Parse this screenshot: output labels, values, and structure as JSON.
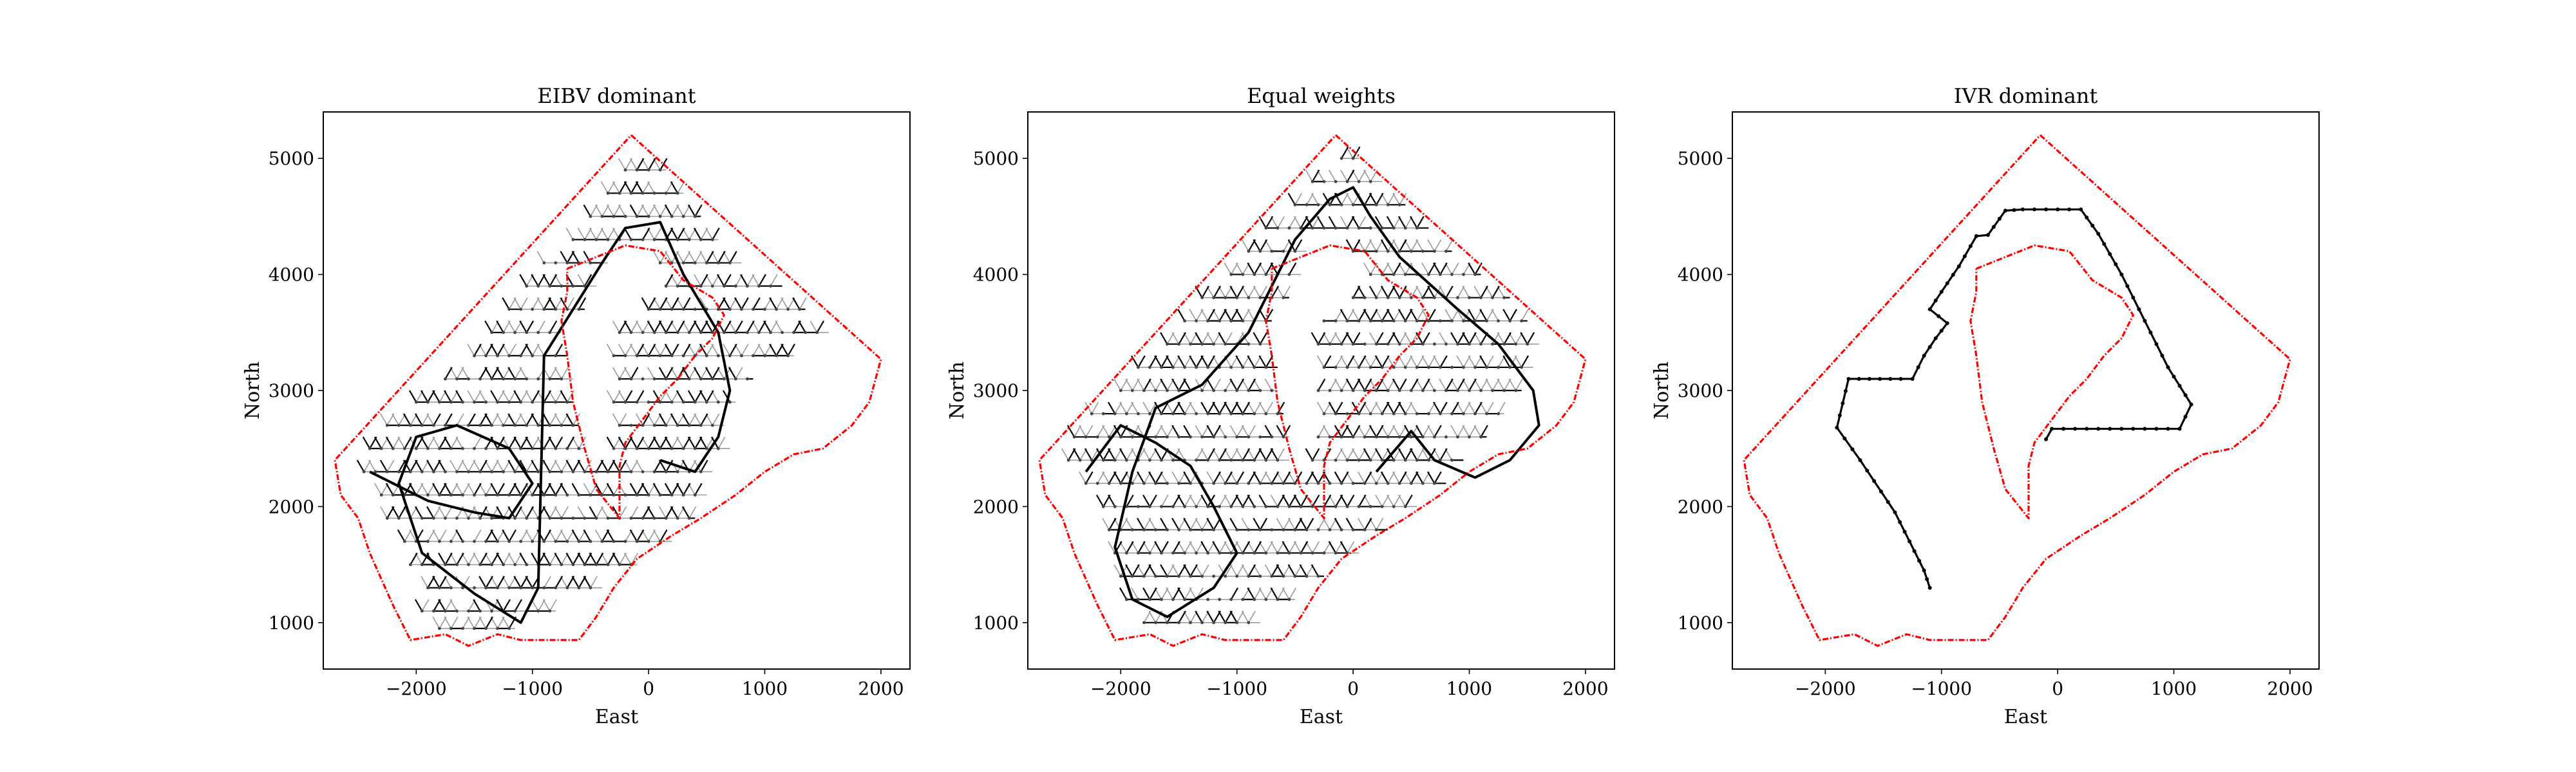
{
  "chart_data": [
    {
      "type": "line",
      "title": "EIBV dominant",
      "xlabel": "East",
      "ylabel": "North",
      "xlim": [
        -2800,
        2250
      ],
      "ylim": [
        600,
        5400
      ],
      "xticks": [
        -2000,
        -1000,
        0,
        1000,
        2000
      ],
      "yticks": [
        1000,
        2000,
        3000,
        4000,
        5000
      ],
      "xtick_labels": [
        "−2000",
        "−1000",
        "0",
        "1000",
        "2000"
      ],
      "ytick_labels": [
        "1000",
        "2000",
        "3000",
        "4000",
        "5000"
      ],
      "grid": false,
      "trajectory_style": "dense lattice",
      "coverage_rows": [
        {
          "y": 4900,
          "x": [
            -250,
            150
          ]
        },
        {
          "y": 4700,
          "x": [
            -400,
            300
          ]
        },
        {
          "y": 4500,
          "x": [
            -550,
            450
          ]
        },
        {
          "y": 4300,
          "x": [
            -700,
            600
          ]
        },
        {
          "y": 4100,
          "x": [
            -900,
            -350,
            50,
            800
          ]
        },
        {
          "y": 3900,
          "x": [
            -1050,
            -450,
            150,
            1150
          ]
        },
        {
          "y": 3700,
          "x": [
            -1200,
            -550,
            0,
            1350
          ]
        },
        {
          "y": 3500,
          "x": [
            -1350,
            -750,
            -250,
            1550
          ]
        },
        {
          "y": 3300,
          "x": [
            -1550,
            -700,
            -350,
            1250
          ]
        },
        {
          "y": 3100,
          "x": [
            -1800,
            -650,
            -300,
            900
          ]
        },
        {
          "y": 2900,
          "x": [
            -2000,
            -650,
            -300,
            750
          ]
        },
        {
          "y": 2700,
          "x": [
            -2250,
            -600,
            -300,
            650
          ]
        },
        {
          "y": 2500,
          "x": [
            -2400,
            -550,
            -300,
            700
          ]
        },
        {
          "y": 2300,
          "x": [
            -2450,
            550
          ]
        },
        {
          "y": 2100,
          "x": [
            -2350,
            500
          ]
        },
        {
          "y": 1900,
          "x": [
            -2250,
            400
          ]
        },
        {
          "y": 1700,
          "x": [
            -2150,
            200
          ]
        },
        {
          "y": 1500,
          "x": [
            -2050,
            -100
          ]
        },
        {
          "y": 1300,
          "x": [
            -1950,
            -400
          ]
        },
        {
          "y": 1100,
          "x": [
            -1950,
            -800
          ]
        },
        {
          "y": 950,
          "x": [
            -1800,
            -1150
          ]
        }
      ],
      "highlight_path": {
        "x": [
          -2400,
          -2200,
          -1900,
          -1500,
          -1200,
          -1000,
          -1200,
          -1650,
          -2000,
          -2150,
          -1950,
          -1500,
          -1100,
          -950,
          -900,
          -400,
          -200,
          100,
          300,
          600,
          700,
          600,
          400,
          100
        ],
        "y": [
          2300,
          2200,
          2050,
          1950,
          1900,
          2200,
          2500,
          2700,
          2600,
          2200,
          1600,
          1250,
          1000,
          1300,
          3300,
          4100,
          4400,
          4450,
          4000,
          3500,
          3000,
          2600,
          2300,
          2400
        ]
      }
    },
    {
      "type": "line",
      "title": "Equal weights",
      "xlabel": "East",
      "ylabel": "North",
      "xlim": [
        -2800,
        2250
      ],
      "ylim": [
        600,
        5400
      ],
      "xticks": [
        -2000,
        -1000,
        0,
        1000,
        2000
      ],
      "yticks": [
        1000,
        2000,
        3000,
        4000,
        5000
      ],
      "xtick_labels": [
        "−2000",
        "−1000",
        "0",
        "1000",
        "2000"
      ],
      "ytick_labels": [
        "1000",
        "2000",
        "3000",
        "4000",
        "5000"
      ],
      "grid": false,
      "trajectory_style": "dense lattice",
      "coverage_rows": [
        {
          "y": 5000,
          "x": [
            -150,
            50
          ]
        },
        {
          "y": 4800,
          "x": [
            -350,
            250
          ]
        },
        {
          "y": 4600,
          "x": [
            -550,
            450
          ]
        },
        {
          "y": 4400,
          "x": [
            -750,
            650
          ]
        },
        {
          "y": 4200,
          "x": [
            -950,
            -400,
            0,
            850
          ]
        },
        {
          "y": 4000,
          "x": [
            -1100,
            -450,
            150,
            1100
          ]
        },
        {
          "y": 3800,
          "x": [
            -1300,
            -550,
            0,
            1350
          ]
        },
        {
          "y": 3600,
          "x": [
            -1450,
            -700,
            -250,
            1500
          ]
        },
        {
          "y": 3400,
          "x": [
            -1650,
            -700,
            -350,
            1600
          ]
        },
        {
          "y": 3200,
          "x": [
            -1850,
            -650,
            -300,
            1550
          ]
        },
        {
          "y": 3000,
          "x": [
            -2050,
            -650,
            -300,
            1450
          ]
        },
        {
          "y": 2800,
          "x": [
            -2250,
            -600,
            -300,
            1300
          ]
        },
        {
          "y": 2600,
          "x": [
            -2400,
            -550,
            -300,
            1150
          ]
        },
        {
          "y": 2400,
          "x": [
            -2450,
            -550,
            -350,
            950
          ]
        },
        {
          "y": 2200,
          "x": [
            -2300,
            800
          ]
        },
        {
          "y": 2000,
          "x": [
            -2200,
            550
          ]
        },
        {
          "y": 1800,
          "x": [
            -2150,
            300
          ]
        },
        {
          "y": 1600,
          "x": [
            -2100,
            50
          ]
        },
        {
          "y": 1400,
          "x": [
            -2000,
            -250
          ]
        },
        {
          "y": 1200,
          "x": [
            -1950,
            -500
          ]
        },
        {
          "y": 1000,
          "x": [
            -1800,
            -800
          ]
        }
      ],
      "highlight_path": {
        "x": [
          -2300,
          -2000,
          -1700,
          -1400,
          -1200,
          -1000,
          -1200,
          -1600,
          -1900,
          -2050,
          -1900,
          -1700,
          -1300,
          -900,
          -700,
          -500,
          -200,
          0,
          150,
          400,
          900,
          1250,
          1550,
          1600,
          1350,
          1050,
          700,
          500,
          200
        ],
        "y": [
          2300,
          2700,
          2550,
          2350,
          2000,
          1600,
          1300,
          1050,
          1200,
          1650,
          2300,
          2850,
          3050,
          3500,
          3900,
          4300,
          4650,
          4750,
          4500,
          4150,
          3700,
          3400,
          3000,
          2700,
          2400,
          2250,
          2400,
          2650,
          2300
        ]
      }
    },
    {
      "type": "line",
      "title": "IVR dominant",
      "xlabel": "East",
      "ylabel": "North",
      "xlim": [
        -2800,
        2250
      ],
      "ylim": [
        600,
        5400
      ],
      "xticks": [
        -2000,
        -1000,
        0,
        1000,
        2000
      ],
      "yticks": [
        1000,
        2000,
        3000,
        4000,
        5000
      ],
      "xtick_labels": [
        "−2000",
        "−1000",
        "0",
        "1000",
        "2000"
      ],
      "ytick_labels": [
        "1000",
        "2000",
        "3000",
        "4000",
        "5000"
      ],
      "grid": false,
      "trajectory_style": "single path",
      "highlight_path": {
        "x": [
          -1100,
          -1150,
          -1400,
          -1700,
          -1900,
          -1800,
          -1350,
          -1250,
          -1150,
          -1050,
          -950,
          -1100,
          -1000,
          -850,
          -700,
          -600,
          -450,
          -300,
          200,
          350,
          550,
          750,
          950,
          1150,
          1050,
          850,
          550,
          250,
          -50,
          -100
        ],
        "y": [
          1300,
          1450,
          1950,
          2400,
          2680,
          3100,
          3100,
          3100,
          3300,
          3450,
          3580,
          3700,
          3850,
          4070,
          4330,
          4340,
          4550,
          4560,
          4560,
          4350,
          4000,
          3600,
          3200,
          2880,
          2670,
          2670,
          2670,
          2670,
          2670,
          2580
        ]
      }
    }
  ],
  "boundary": {
    "outer_x": [
      -150,
      2000,
      1900,
      1750,
      1500,
      1250,
      1000,
      750,
      450,
      200,
      -100,
      -300,
      -450,
      -600,
      -900,
      -1100,
      -1300,
      -1550,
      -1750,
      -2050,
      -2200,
      -2400,
      -2500,
      -2650,
      -2700,
      -150
    ],
    "outer_y": [
      5200,
      3270,
      2900,
      2700,
      2500,
      2450,
      2300,
      2100,
      1900,
      1750,
      1550,
      1300,
      1050,
      850,
      850,
      850,
      900,
      800,
      900,
      850,
      1150,
      1600,
      1900,
      2100,
      2400,
      5200
    ],
    "inner_x": [
      -700,
      -200,
      100,
      300,
      550,
      650,
      550,
      400,
      250,
      100,
      -50,
      -200,
      -250,
      -250,
      -250,
      -450,
      -550,
      -650,
      -700,
      -750,
      -700,
      -700
    ],
    "inner_y": [
      4050,
      4250,
      4200,
      3950,
      3800,
      3650,
      3450,
      3300,
      3100,
      2950,
      2750,
      2550,
      2350,
      2150,
      1900,
      2150,
      2500,
      2900,
      3300,
      3600,
      3850,
      4050
    ]
  },
  "colors": {
    "boundary": "#ff0000",
    "path_strong": "#000000",
    "path_light": "#9a9a9a",
    "axes": "#000000",
    "background": "#ffffff"
  }
}
